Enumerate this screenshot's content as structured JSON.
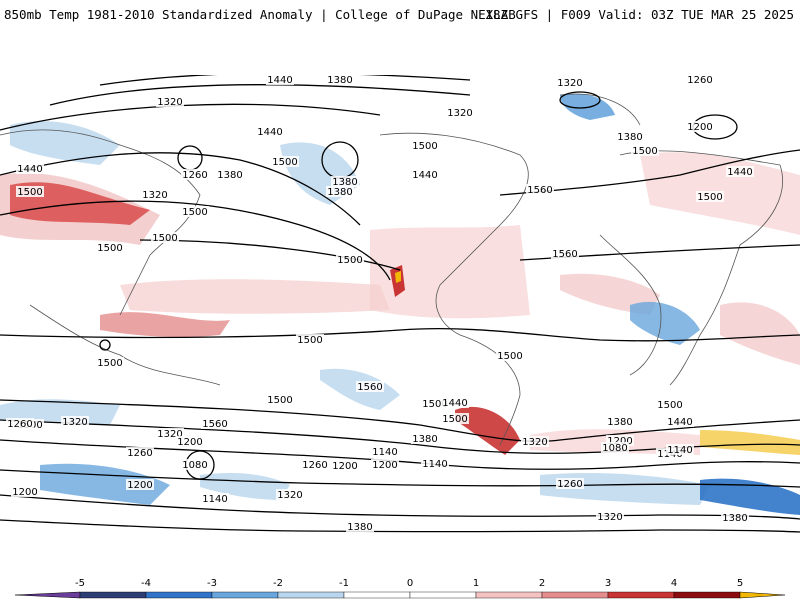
{
  "header": {
    "title_left": "850mb Temp 1981-2010 Standardized Anomaly | College of DuPage NEXLAB",
    "title_right": "18Z GFS | F009 Valid: 03Z TUE MAR 25 2025"
  },
  "colorbar": {
    "ticks": [
      "-5",
      "-4",
      "-3",
      "-2",
      "-1",
      "0",
      "1",
      "2",
      "3",
      "4",
      "5"
    ],
    "colors": [
      "#6a3d9a",
      "#2c3e73",
      "#2f74c8",
      "#69a6dd",
      "#b9d6ee",
      "#ffffff",
      "#ffffff",
      "#f5c2c2",
      "#e58c8c",
      "#c93434",
      "#8b0d10",
      "#f2b705"
    ]
  },
  "contour_labels": [
    "1380",
    "1440",
    "1320",
    "1260",
    "1320",
    "1440",
    "1500",
    "1380",
    "1260",
    "1380",
    "1500",
    "1320",
    "1440",
    "1440",
    "1500",
    "1500",
    "1380",
    "1500",
    "1320",
    "1500",
    "1200",
    "1380",
    "1440",
    "1500",
    "1560",
    "1500",
    "1500",
    "1560",
    "1500",
    "1560",
    "1500",
    "1500",
    "1500",
    "1500",
    "1500",
    "1500",
    "1560",
    "1500",
    "1440",
    "1440",
    "1380",
    "1320",
    "1320",
    "1380",
    "1260",
    "1200",
    "1140",
    "1320",
    "1200",
    "1140",
    "1260",
    "1080",
    "1200",
    "1140",
    "1080",
    "1200",
    "1140",
    "1200",
    "1260",
    "1140",
    "1320",
    "1200",
    "1260",
    "1380",
    "1320",
    "1380"
  ]
}
